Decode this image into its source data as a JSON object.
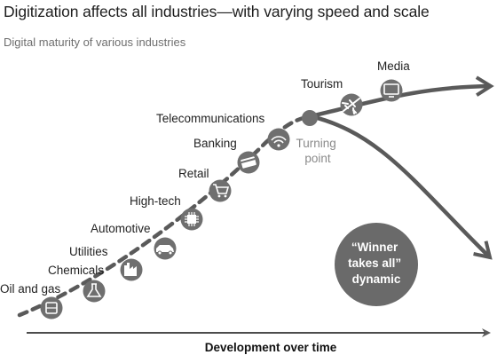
{
  "title": "Digitization affects all industries—with varying speed and scale",
  "subtitle": "Digital maturity of various industries",
  "industries": [
    {
      "label": "Oil and gas",
      "icon": "oil-barrel-icon"
    },
    {
      "label": "Chemicals",
      "icon": "chemical-flask-icon"
    },
    {
      "label": "Utilities",
      "icon": "factory-icon"
    },
    {
      "label": "Automotive",
      "icon": "car-icon"
    },
    {
      "label": "High-tech",
      "icon": "microchip-icon"
    },
    {
      "label": "Retail",
      "icon": "shopping-cart-icon"
    },
    {
      "label": "Banking",
      "icon": "credit-card-icon"
    },
    {
      "label": "Telecommunications",
      "icon": "wifi-icon"
    },
    {
      "label": "Tourism",
      "icon": "airplane-icon"
    },
    {
      "label": "Media",
      "icon": "monitor-icon"
    }
  ],
  "turning_point": {
    "line1": "Turning",
    "line2": "point"
  },
  "winner": {
    "line1": "“Winner",
    "line2": "takes all”",
    "line3": "dynamic"
  },
  "axis_label": "Development over time",
  "colors": {
    "icon_fill": "#6f6f6f",
    "curve": "#5a5a5a",
    "turning_text": "#8a8a8a",
    "winner_fill": "#6a6a6a"
  }
}
